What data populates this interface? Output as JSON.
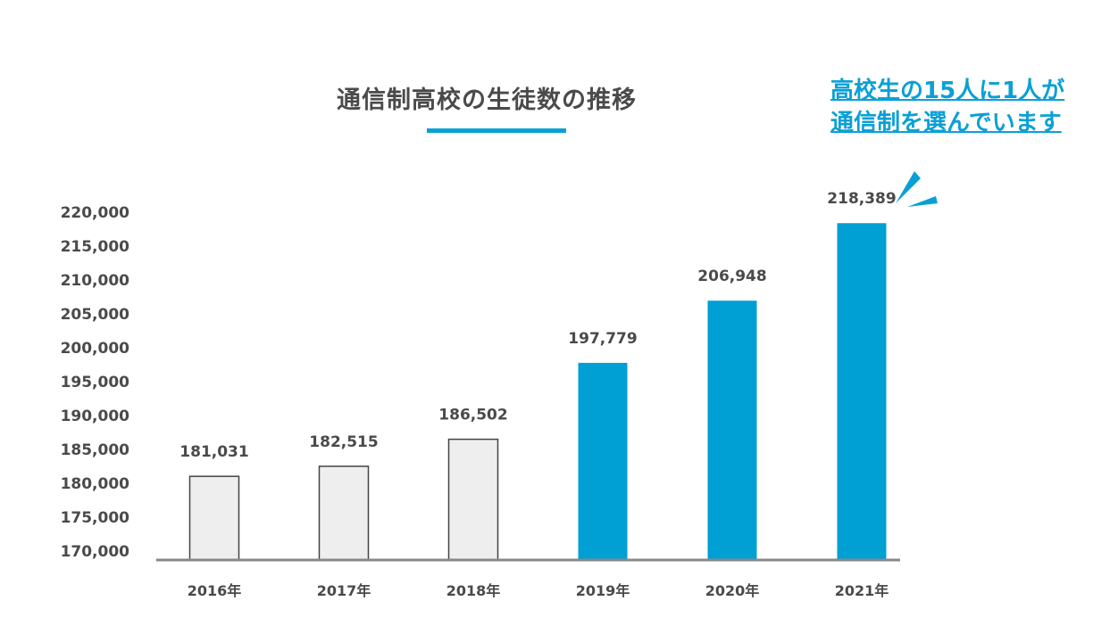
{
  "page": {
    "title": "通信制高校の生徒数の推移",
    "callout_line1": "高校生の15人に1人が",
    "callout_line2": "通信制を選んでいます"
  },
  "colors": {
    "accent": "#0aa0d6",
    "highlight_bar": "#009fd4",
    "plain_bar_fill": "#eeeeee",
    "plain_bar_stroke": "#444444",
    "text": "#4a4a4a",
    "axis": "#888888"
  },
  "chart_data": {
    "type": "bar",
    "title": "通信制高校の生徒数の推移",
    "categories": [
      "2016年",
      "2017年",
      "2018年",
      "2019年",
      "2020年",
      "2021年"
    ],
    "values": [
      181031,
      182515,
      186502,
      197779,
      206948,
      218389
    ],
    "value_labels": [
      "181,031",
      "182,515",
      "186,502",
      "197,779",
      "206,948",
      "218,389"
    ],
    "highlighted": [
      false,
      false,
      false,
      true,
      true,
      true
    ],
    "ylim": [
      170000,
      220000
    ],
    "yticks": [
      170000,
      175000,
      180000,
      185000,
      190000,
      195000,
      200000,
      205000,
      210000,
      215000,
      220000
    ],
    "ytick_labels": [
      "170,000",
      "175,000",
      "180,000",
      "185,000",
      "190,000",
      "195,000",
      "200,000",
      "205,000",
      "210,000",
      "215,000",
      "220,000"
    ],
    "xlabel": "",
    "ylabel": "",
    "grid": false,
    "legend": "none"
  }
}
